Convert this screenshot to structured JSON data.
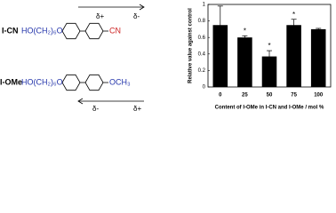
{
  "structures": [
    {
      "label": "I-CN",
      "chain": "HO(CH₂)₆O",
      "group": "CN",
      "dipole": [
        "δ+",
        "δ-"
      ]
    },
    {
      "label": "I-OMe",
      "chain": "HO(CH₂)₆O",
      "group": "OCH₃",
      "dipole": [
        "δ-",
        "δ+"
      ]
    }
  ],
  "chart_data": {
    "type": "bar",
    "categories": [
      "0",
      "25",
      "50",
      "75",
      "100"
    ],
    "values": [
      0.75,
      0.6,
      0.37,
      0.75,
      0.7
    ],
    "errors": [
      0.23,
      0.02,
      0.07,
      0.07,
      0.01
    ],
    "significance": [
      null,
      "*",
      "*",
      "*",
      null
    ],
    "color": "#000000",
    "y_label": "Relative value against control",
    "x_label": "Content of I-OMe in I-CN and I-OMe / mol %",
    "ylim": [
      0,
      1
    ],
    "yticks": [
      0,
      0.2,
      0.4,
      0.6,
      0.8,
      1
    ]
  }
}
